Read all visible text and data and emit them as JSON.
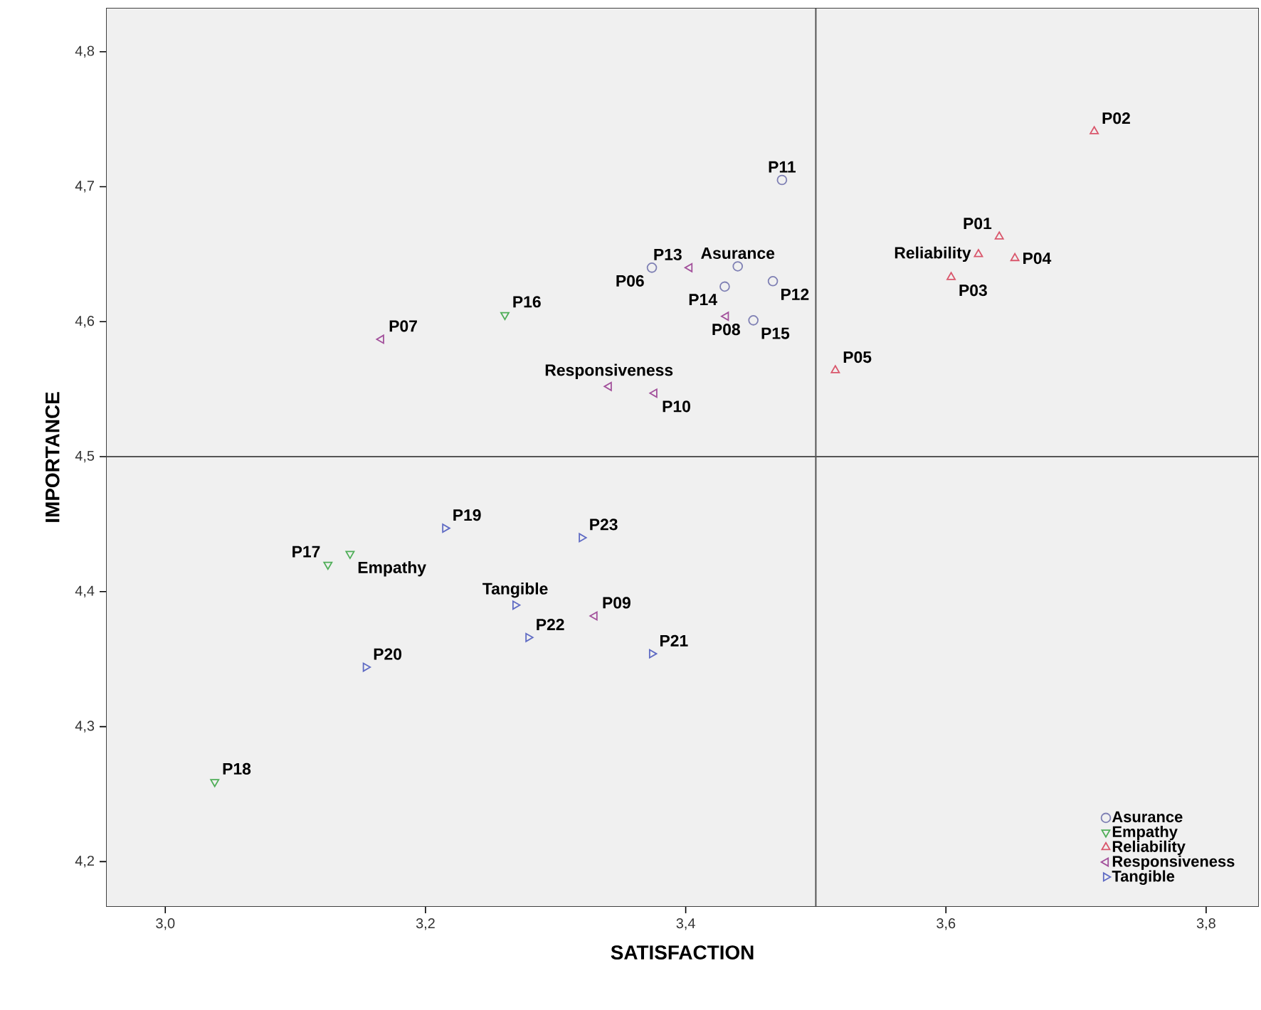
{
  "chart_data": {
    "type": "scatter",
    "xlabel": "SATISFACTION",
    "ylabel": "IMPORTANCE",
    "xlim": [
      2.955,
      3.84
    ],
    "ylim": [
      4.167,
      4.832
    ],
    "xticks": [
      {
        "value": 3.0,
        "label": "3,0"
      },
      {
        "value": 3.2,
        "label": "3,2"
      },
      {
        "value": 3.4,
        "label": "3,4"
      },
      {
        "value": 3.6,
        "label": "3,6"
      },
      {
        "value": 3.8,
        "label": "3,8"
      }
    ],
    "yticks": [
      {
        "value": 4.2,
        "label": "4,2"
      },
      {
        "value": 4.3,
        "label": "4,3"
      },
      {
        "value": 4.4,
        "label": "4,4"
      },
      {
        "value": 4.5,
        "label": "4,5"
      },
      {
        "value": 4.6,
        "label": "4,6"
      },
      {
        "value": 4.7,
        "label": "4,7"
      },
      {
        "value": 4.8,
        "label": "4,8"
      }
    ],
    "legend": "bottom right",
    "series": [
      {
        "name": "Asurance",
        "color": "#7f80b4",
        "marker": "circle",
        "x": [
          3.374,
          3.474,
          3.467,
          3.43,
          3.452,
          3.44
        ],
        "values": [
          4.64,
          4.705,
          4.63,
          4.626,
          4.601,
          4.641
        ]
      },
      {
        "name": "Empathy",
        "color": "#4fae58",
        "marker": "triangle-down",
        "x": [
          3.261,
          3.125,
          3.038,
          3.142
        ],
        "values": [
          4.605,
          4.42,
          4.259,
          4.428
        ]
      },
      {
        "name": "Reliability",
        "color": "#d9566b",
        "marker": "triangle",
        "x": [
          3.641,
          3.714,
          3.604,
          3.653,
          3.515,
          3.625
        ],
        "values": [
          4.663,
          4.741,
          4.633,
          4.647,
          4.564,
          4.65
        ]
      },
      {
        "name": "Responsiveness",
        "color": "#a2509b",
        "marker": "triangle-left",
        "x": [
          3.166,
          3.431,
          3.33,
          3.376,
          3.403,
          3.341
        ],
        "values": [
          4.587,
          4.604,
          4.382,
          4.547,
          4.64,
          4.552
        ]
      },
      {
        "name": "Tangible",
        "color": "#5f6bc4",
        "marker": "triangle-right",
        "x": [
          3.215,
          3.154,
          3.374,
          3.279,
          3.32,
          3.269
        ],
        "values": [
          4.447,
          4.344,
          4.354,
          4.366,
          4.44,
          4.39
        ]
      }
    ],
    "ref_lines": [
      {
        "axis": "x",
        "value": 3.5,
        "color": "#555555"
      },
      {
        "axis": "y",
        "value": 4.5,
        "color": "#555555"
      }
    ],
    "annotations": [
      {
        "text": "P01",
        "x": 3.641,
        "y": 4.663
      },
      {
        "text": "P02",
        "x": 3.714,
        "y": 4.741
      },
      {
        "text": "P03",
        "x": 3.604,
        "y": 4.633
      },
      {
        "text": "P04",
        "x": 3.653,
        "y": 4.647
      },
      {
        "text": "P05",
        "x": 3.515,
        "y": 4.564
      },
      {
        "text": "Reliability",
        "x": 3.625,
        "y": 4.65
      },
      {
        "text": "P06",
        "x": 3.374,
        "y": 4.64
      },
      {
        "text": "P11",
        "x": 3.474,
        "y": 4.705
      },
      {
        "text": "P12",
        "x": 3.467,
        "y": 4.63
      },
      {
        "text": "P14",
        "x": 3.43,
        "y": 4.626
      },
      {
        "text": "P15",
        "x": 3.452,
        "y": 4.601
      },
      {
        "text": "Asurance",
        "x": 3.44,
        "y": 4.641
      },
      {
        "text": "P16",
        "x": 3.261,
        "y": 4.605
      },
      {
        "text": "P17",
        "x": 3.125,
        "y": 4.42
      },
      {
        "text": "P18",
        "x": 3.038,
        "y": 4.259
      },
      {
        "text": "Empathy",
        "x": 3.142,
        "y": 4.428
      },
      {
        "text": "P07",
        "x": 3.166,
        "y": 4.587
      },
      {
        "text": "P08",
        "x": 3.431,
        "y": 4.604
      },
      {
        "text": "P09",
        "x": 3.33,
        "y": 4.382
      },
      {
        "text": "P10",
        "x": 3.376,
        "y": 4.547
      },
      {
        "text": "P13",
        "x": 3.403,
        "y": 4.64
      },
      {
        "text": "Responsiveness",
        "x": 3.341,
        "y": 4.552
      },
      {
        "text": "P19",
        "x": 3.215,
        "y": 4.447
      },
      {
        "text": "P20",
        "x": 3.154,
        "y": 4.344
      },
      {
        "text": "P21",
        "x": 3.374,
        "y": 4.354
      },
      {
        "text": "P22",
        "x": 3.279,
        "y": 4.366
      },
      {
        "text": "P23",
        "x": 3.32,
        "y": 4.44
      },
      {
        "text": "Tangible",
        "x": 3.269,
        "y": 4.39
      }
    ]
  }
}
